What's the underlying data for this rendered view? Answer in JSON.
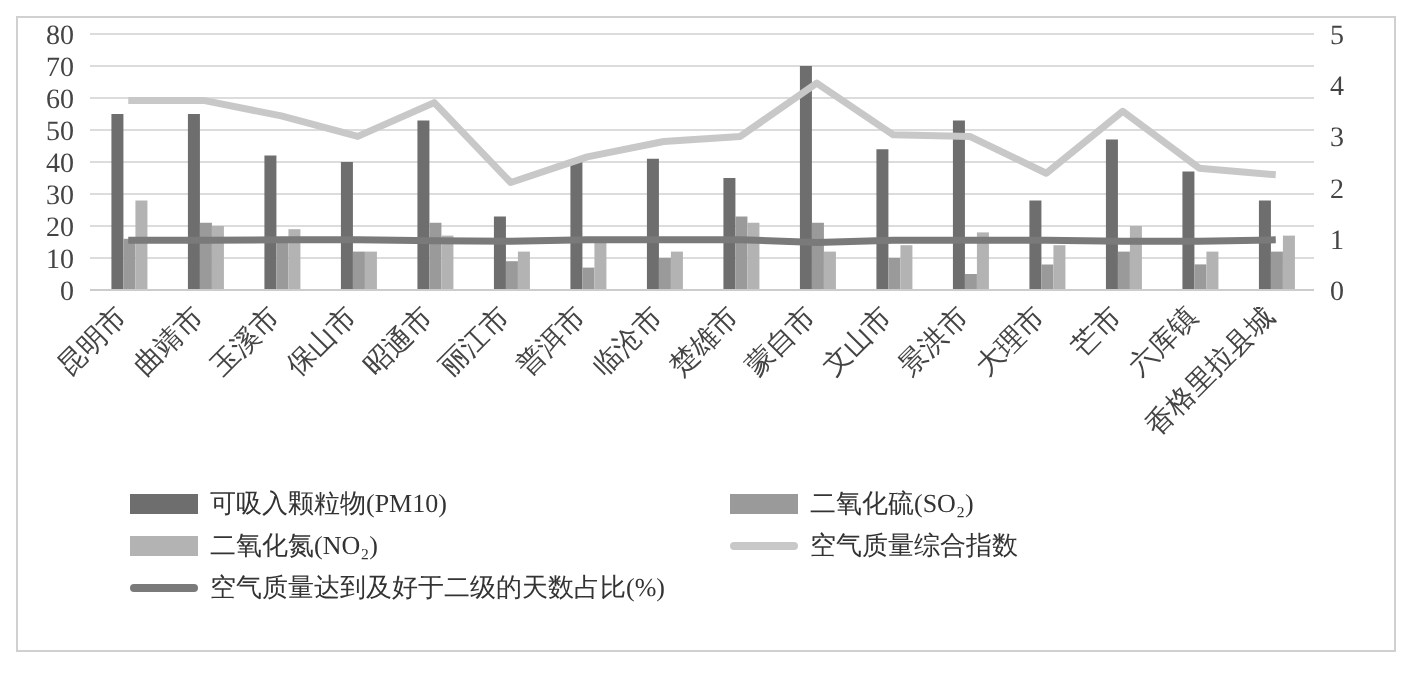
{
  "chart_data": {
    "type": "bar",
    "categories": [
      "昆明市",
      "曲靖市",
      "玉溪市",
      "保山市",
      "昭通市",
      "丽江市",
      "普洱市",
      "临沧市",
      "楚雄市",
      "蒙自市",
      "文山市",
      "景洪市",
      "大理市",
      "芒市",
      "六库镇",
      "香格里拉县城"
    ],
    "series": [
      {
        "name": "可吸入颗粒物(PM10)",
        "color": "#6e6e6e",
        "values": [
          55,
          55,
          42,
          40,
          53,
          23,
          40,
          41,
          35,
          70,
          44,
          53,
          28,
          47,
          37,
          28
        ]
      },
      {
        "name": "二氧化硫(SO₂)",
        "color": "#9a9a9a",
        "values": [
          16,
          21,
          16,
          12,
          21,
          9,
          7,
          10,
          23,
          21,
          10,
          5,
          8,
          12,
          8,
          12
        ]
      },
      {
        "name": "二氧化氮(NO₂)",
        "color": "#b3b3b3",
        "values": [
          28,
          20,
          19,
          12,
          17,
          12,
          15,
          12,
          21,
          12,
          14,
          18,
          14,
          20,
          12,
          17
        ]
      },
      {
        "name": "空气质量综合指数",
        "type": "line",
        "axis": "y2",
        "color": "#c8c8c8",
        "values": [
          3.7,
          3.7,
          3.4,
          3.0,
          3.66,
          2.1,
          2.6,
          2.9,
          3.0,
          4.04,
          3.03,
          3.0,
          2.28,
          3.49,
          2.38,
          2.25
        ]
      },
      {
        "name": "空气质量达到及好于二级的天数占比(%)",
        "type": "line",
        "axis": "y2",
        "color": "#7a7a7a",
        "values": [
          0.97,
          0.97,
          0.98,
          0.98,
          0.96,
          0.95,
          0.98,
          0.98,
          0.98,
          0.93,
          0.97,
          0.97,
          0.97,
          0.95,
          0.95,
          0.98
        ]
      }
    ],
    "ylim": [
      0,
      80
    ],
    "yticks": [
      0,
      10,
      20,
      30,
      40,
      50,
      60,
      70,
      80
    ],
    "y2lim": [
      0,
      5
    ],
    "y2ticks": [
      0,
      1,
      2,
      3,
      4,
      5
    ],
    "grid": "y",
    "legend": "bottom",
    "marker": "none",
    "line_style": "solid"
  }
}
